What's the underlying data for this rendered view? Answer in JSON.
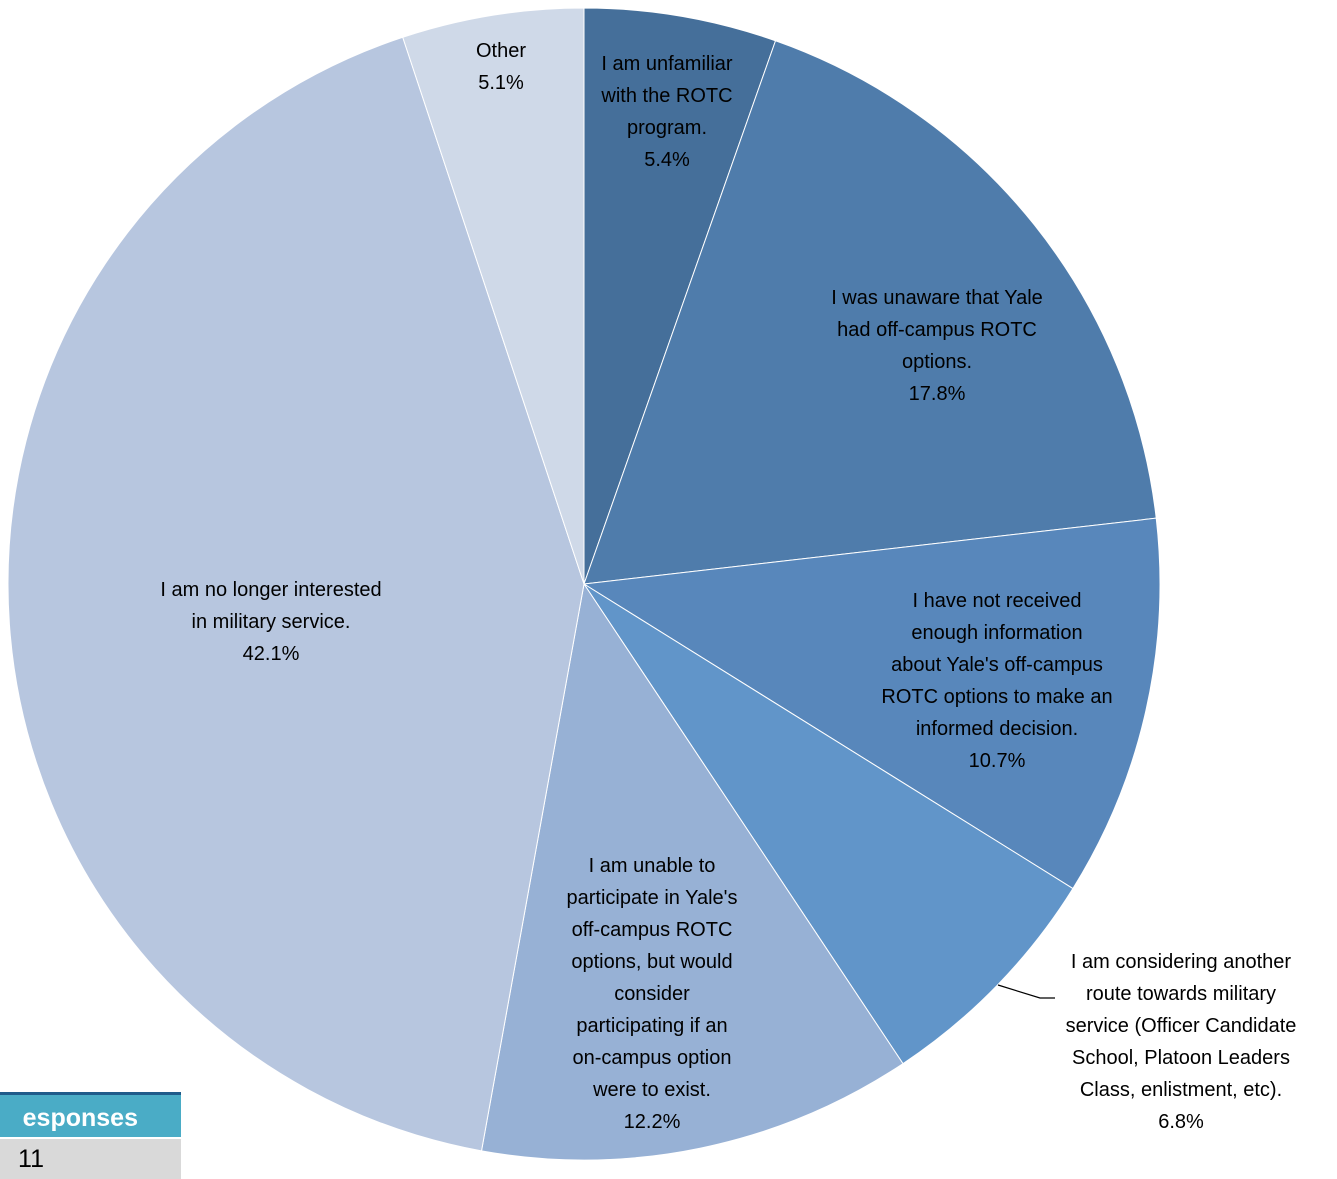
{
  "chart_data": {
    "type": "pie",
    "title": "",
    "slices": [
      {
        "label": "I am unfamiliar with the ROTC program.",
        "value": 5.4,
        "value_label": "5.4%",
        "color": "#456f9a"
      },
      {
        "label": "I was unaware that Yale had off-campus ROTC options.",
        "value": 17.8,
        "value_label": "17.8%",
        "color": "#4f7cab"
      },
      {
        "label": "I have not received enough information about Yale's off-campus ROTC options to make an informed decision.",
        "value": 10.7,
        "value_label": "10.7%",
        "color": "#5887bb"
      },
      {
        "label": "I am considering another route towards military service (Officer Candidate School, Platoon Leaders Class, enlistment, etc).",
        "value": 6.8,
        "value_label": "6.8%",
        "color": "#6195c9"
      },
      {
        "label": "I am unable to participate in Yale's off-campus ROTC options, but would consider participating if an on-campus option were to exist.",
        "value": 12.2,
        "value_label": "12.2%",
        "color": "#97b1d5"
      },
      {
        "label": "I am no longer interested in military service.",
        "value": 42.1,
        "value_label": "42.1%",
        "color": "#b7c6df"
      },
      {
        "label": "Other",
        "value": 5.1,
        "value_label": "5.1%",
        "color": "#cfd9e8"
      }
    ],
    "start_angle": "12 o'clock",
    "direction": "clockwise",
    "data_labels": [
      {
        "lines": [
          "I am unfamiliar",
          "with the ROTC",
          "program.",
          "5.4%"
        ]
      },
      {
        "lines": [
          "I was unaware that Yale",
          "had off-campus ROTC",
          "options.",
          "17.8%"
        ]
      },
      {
        "lines": [
          "I have not received",
          "enough information",
          "about Yale's off-campus",
          "ROTC options to make an",
          "informed decision.",
          "10.7%"
        ]
      },
      {
        "lines": [
          "I am considering another",
          "route towards military",
          "service (Officer Candidate",
          "School, Platoon Leaders",
          "Class, enlistment, etc).",
          "6.8%"
        ]
      },
      {
        "lines": [
          "I am unable to",
          "participate in Yale's",
          "off-campus ROTC",
          "options, but would",
          "consider",
          "participating if an",
          "on-campus option",
          "were to exist.",
          "12.2%"
        ]
      },
      {
        "lines": [
          "I am no longer interested",
          "in military service.",
          "42.1%"
        ]
      },
      {
        "lines": [
          "Other",
          "5.1%"
        ]
      }
    ]
  },
  "responses_table": {
    "header": "esponses",
    "value": "11",
    "header_color": "#4aacc6",
    "value_row_color": "#d9d9d9"
  }
}
